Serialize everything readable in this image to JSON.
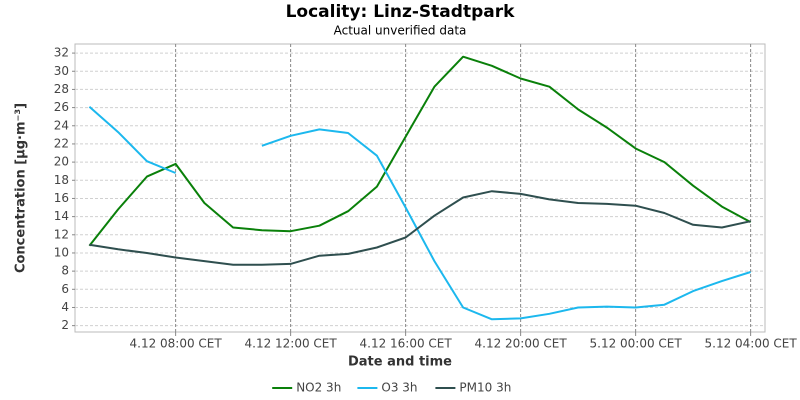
{
  "chart_data": {
    "type": "line",
    "title": "Locality: Linz-Stadtpark",
    "subtitle": "Actual unverified data",
    "x_label": "Date and time",
    "y_label": "Concentration [µg·m⁻³]",
    "categories": [
      null,
      null,
      null,
      "4.12 08:00 CET",
      null,
      null,
      null,
      "4.12 12:00 CET",
      null,
      null,
      null,
      "4.12 16:00 CET",
      null,
      null,
      null,
      "4.12 20:00 CET",
      null,
      null,
      null,
      "5.12 00:00 CET",
      null,
      null,
      null,
      "5.12 04:00 CET"
    ],
    "series": [
      {
        "name": "NO2 3h",
        "color": "#0a800a",
        "values": [
          10.8,
          14.8,
          18.4,
          19.8,
          15.5,
          12.8,
          12.5,
          12.4,
          13.0,
          14.6,
          17.3,
          22.8,
          28.3,
          31.6,
          30.6,
          29.2,
          28.3,
          25.8,
          23.8,
          21.5,
          20.0,
          17.4,
          15.1,
          13.4
        ]
      },
      {
        "name": "O3 3h",
        "color": "#1cb8ee",
        "values": [
          26.1,
          23.3,
          20.1,
          18.8,
          null,
          null,
          21.8,
          22.9,
          23.6,
          23.2,
          20.7,
          15.0,
          9.1,
          4.0,
          2.7,
          2.8,
          3.3,
          4.0,
          4.1,
          4.0,
          4.3,
          5.8,
          6.9,
          7.9
        ]
      },
      {
        "name": "PM10 3h",
        "color": "#2f4f4f",
        "values": [
          10.9,
          10.4,
          10.0,
          9.5,
          9.1,
          8.7,
          8.7,
          8.8,
          9.7,
          9.9,
          10.6,
          11.7,
          14.1,
          16.1,
          16.8,
          16.5,
          15.9,
          15.5,
          15.4,
          15.2,
          14.4,
          13.1,
          12.8,
          13.5
        ]
      }
    ],
    "ylim": [
      1.3,
      33
    ],
    "yticks": [
      2,
      4,
      6,
      8,
      10,
      12,
      14,
      16,
      18,
      20,
      22,
      24,
      26,
      28,
      30,
      32
    ],
    "grid": true,
    "legend": "bottom"
  }
}
